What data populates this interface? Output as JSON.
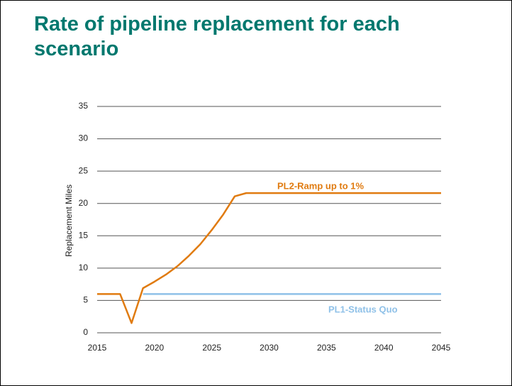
{
  "chart_data": {
    "type": "line",
    "title": "Rate of pipeline replacement for each scenario",
    "y_label": "Replacement Miles",
    "x": [
      2015,
      2016,
      2017,
      2018,
      2019,
      2020,
      2021,
      2022,
      2023,
      2024,
      2025,
      2026,
      2027,
      2028,
      2029,
      2030,
      2031,
      2032,
      2033,
      2034,
      2035,
      2036,
      2037,
      2038,
      2039,
      2040,
      2041,
      2042,
      2043,
      2044,
      2045
    ],
    "series": [
      {
        "name": "PL2-Ramp up to 1%",
        "color": "#e07b10",
        "values": [
          6,
          6,
          6,
          1.5,
          6.9,
          7.9,
          9,
          10.3,
          11.9,
          13.7,
          15.9,
          18.3,
          21.1,
          21.6,
          21.6,
          21.6,
          21.6,
          21.6,
          21.6,
          21.6,
          21.6,
          21.6,
          21.6,
          21.6,
          21.6,
          21.6,
          21.6,
          21.6,
          21.6,
          21.6,
          21.6
        ]
      },
      {
        "name": "PL1-Status Quo",
        "color": "#8fc1e8",
        "values": [
          null,
          null,
          null,
          null,
          6,
          6,
          6,
          6,
          6,
          6,
          6,
          6,
          6,
          6,
          6,
          6,
          6,
          6,
          6,
          6,
          6,
          6,
          6,
          6,
          6,
          6,
          6,
          6,
          6,
          6,
          6
        ]
      }
    ],
    "xlim": [
      2015,
      2045
    ],
    "xticks": [
      2015,
      2020,
      2025,
      2030,
      2035,
      2040,
      2045
    ],
    "ylim": [
      0,
      35
    ],
    "yticks": [
      0,
      5,
      10,
      15,
      20,
      25,
      30,
      35
    ],
    "grid": true
  }
}
